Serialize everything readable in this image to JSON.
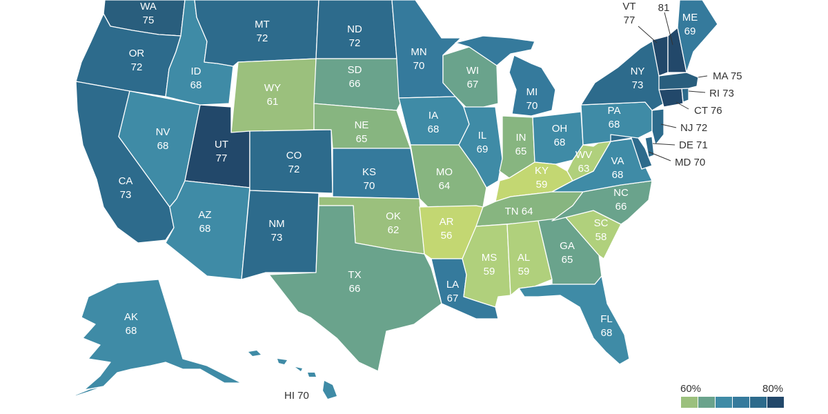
{
  "colors": {
    "c56": "#c3d772",
    "c58": "#b0d07c",
    "c61": "#9bc07d",
    "c64": "#87b580",
    "c66": "#6aa38c",
    "c68": "#3f8ba6",
    "c70": "#357a9c",
    "c72": "#2d6b8c",
    "c75": "#295e7d",
    "c78": "#22486a"
  },
  "states": {
    "WA": {
      "abbr": "WA",
      "value": "75"
    },
    "OR": {
      "abbr": "OR",
      "value": "72"
    },
    "CA": {
      "abbr": "CA",
      "value": "73"
    },
    "NV": {
      "abbr": "NV",
      "value": "68"
    },
    "ID": {
      "abbr": "ID",
      "value": "68"
    },
    "MT": {
      "abbr": "MT",
      "value": "72"
    },
    "WY": {
      "abbr": "WY",
      "value": "61"
    },
    "UT": {
      "abbr": "UT",
      "value": "77"
    },
    "AZ": {
      "abbr": "AZ",
      "value": "68"
    },
    "CO": {
      "abbr": "CO",
      "value": "72"
    },
    "NM": {
      "abbr": "NM",
      "value": "73"
    },
    "ND": {
      "abbr": "ND",
      "value": "72"
    },
    "SD": {
      "abbr": "SD",
      "value": "66"
    },
    "NE": {
      "abbr": "NE",
      "value": "65"
    },
    "KS": {
      "abbr": "KS",
      "value": "70"
    },
    "OK": {
      "abbr": "OK",
      "value": "62"
    },
    "TX": {
      "abbr": "TX",
      "value": "66"
    },
    "MN": {
      "abbr": "MN",
      "value": "70"
    },
    "IA": {
      "abbr": "IA",
      "value": "68"
    },
    "MO": {
      "abbr": "MO",
      "value": "64"
    },
    "AR": {
      "abbr": "AR",
      "value": "56"
    },
    "LA": {
      "abbr": "LA",
      "value": "67"
    },
    "WI": {
      "abbr": "WI",
      "value": "67"
    },
    "IL": {
      "abbr": "IL",
      "value": "69"
    },
    "MI": {
      "abbr": "MI",
      "value": "70"
    },
    "IN": {
      "abbr": "IN",
      "value": "65"
    },
    "OH": {
      "abbr": "OH",
      "value": "68"
    },
    "KY": {
      "abbr": "KY",
      "value": "59"
    },
    "TN": {
      "abbr": "TN",
      "value": "64"
    },
    "MS": {
      "abbr": "MS",
      "value": "59"
    },
    "AL": {
      "abbr": "AL",
      "value": "59"
    },
    "GA": {
      "abbr": "GA",
      "value": "65"
    },
    "FL": {
      "abbr": "FL",
      "value": "68"
    },
    "SC": {
      "abbr": "SC",
      "value": "58"
    },
    "NC": {
      "abbr": "NC",
      "value": "66"
    },
    "VA": {
      "abbr": "VA",
      "value": "68"
    },
    "WV": {
      "abbr": "WV",
      "value": "63"
    },
    "PA": {
      "abbr": "PA",
      "value": "68"
    },
    "NY": {
      "abbr": "NY",
      "value": "73"
    },
    "ME": {
      "abbr": "ME",
      "value": "69"
    },
    "AK": {
      "abbr": "AK",
      "value": "68"
    },
    "VT": {
      "abbr": "VT",
      "value": "77"
    }
  },
  "outside_labels": {
    "NH": "81",
    "MA": "MA 75",
    "RI": "RI 73",
    "CT": "CT 76",
    "NJ": "NJ 72",
    "DE": "DE 71",
    "MD": "MD 70",
    "HI": "HI 70"
  },
  "legend": {
    "low_label": "60%",
    "high_label": "80%",
    "swatches": [
      "#9bc07d",
      "#6aa38c",
      "#3f8ba6",
      "#357a9c",
      "#2d6b8c",
      "#22486a"
    ]
  }
}
